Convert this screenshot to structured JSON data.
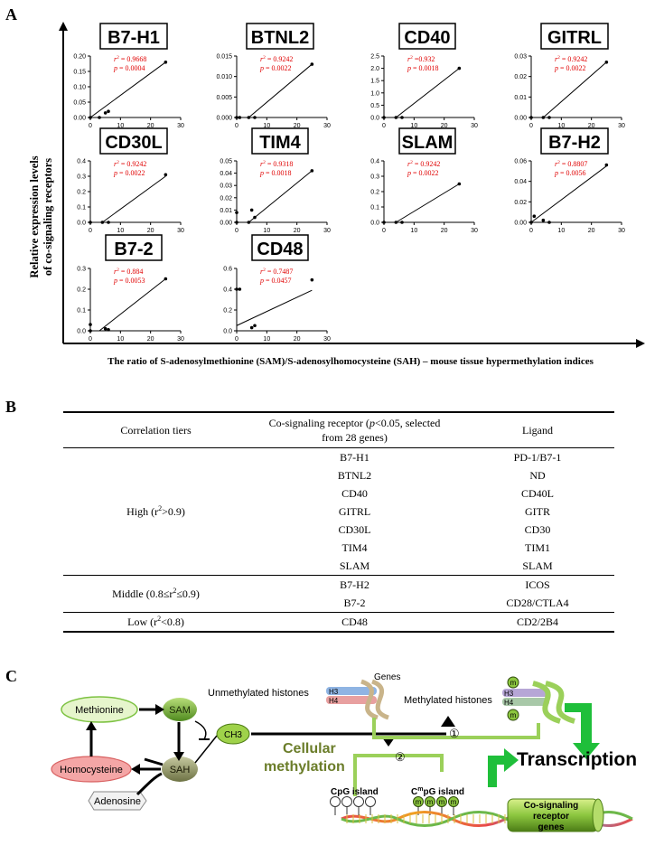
{
  "panels": {
    "a": "A",
    "b": "B",
    "c": "C"
  },
  "panel_a": {
    "y_axis_label_line1": "Relative expression levels",
    "y_axis_label_line2": "of co-signaling receptors",
    "x_axis_label": "The ratio of S-adenosylmethionine (SAM)/S-adenosylhomocysteine (SAH) – mouse tissue hypermethylation indices"
  },
  "chart_data": [
    {
      "type": "scatter",
      "title": "B7-H1",
      "r2": "0.9668",
      "p": "0.0004",
      "x_ticks": [
        0,
        10,
        20,
        30
      ],
      "y_ticks": [
        "0.00",
        "0.05",
        "0.10",
        "0.15",
        "0.20"
      ],
      "xlim": [
        0,
        30
      ],
      "ylim": [
        0,
        0.2
      ],
      "points": [
        [
          0,
          0
        ],
        [
          3,
          0
        ],
        [
          5,
          0.015
        ],
        [
          6,
          0.02
        ],
        [
          25,
          0.18
        ]
      ],
      "fit": [
        [
          0,
          0
        ],
        [
          25,
          0.18
        ]
      ]
    },
    {
      "type": "scatter",
      "title": "BTNL2",
      "r2": "0.9242",
      "p": "0.0022",
      "x_ticks": [
        0,
        10,
        20,
        30
      ],
      "y_ticks": [
        "0.000",
        "0.005",
        "0.010",
        "0.015"
      ],
      "xlim": [
        0,
        30
      ],
      "ylim": [
        0,
        0.015
      ],
      "points": [
        [
          0,
          0
        ],
        [
          1,
          0
        ],
        [
          4,
          0
        ],
        [
          6,
          0
        ],
        [
          25,
          0.013
        ]
      ],
      "fit": [
        [
          4,
          0
        ],
        [
          25,
          0.013
        ]
      ]
    },
    {
      "type": "scatter",
      "title": "CD40",
      "r2": "=0.932",
      "p": "0.0018",
      "x_ticks": [
        0,
        10,
        20,
        30
      ],
      "y_ticks": [
        "0.0",
        "0.5",
        "1.0",
        "1.5",
        "2.0",
        "2.5"
      ],
      "xlim": [
        0,
        30
      ],
      "ylim": [
        0,
        2.5
      ],
      "points": [
        [
          0,
          0
        ],
        [
          4,
          0
        ],
        [
          6,
          0
        ],
        [
          25,
          2.0
        ]
      ],
      "fit": [
        [
          4,
          0
        ],
        [
          25,
          2.0
        ]
      ]
    },
    {
      "type": "scatter",
      "title": "GITRL",
      "r2": "0.9242",
      "p": "0.0022",
      "x_ticks": [
        0,
        10,
        20,
        30
      ],
      "y_ticks": [
        "0.00",
        "0.01",
        "0.02",
        "0.03"
      ],
      "xlim": [
        0,
        30
      ],
      "ylim": [
        0,
        0.03
      ],
      "points": [
        [
          0,
          0
        ],
        [
          4,
          0
        ],
        [
          6,
          0
        ],
        [
          25,
          0.027
        ]
      ],
      "fit": [
        [
          4,
          0
        ],
        [
          25,
          0.027
        ]
      ]
    },
    {
      "type": "scatter",
      "title": "CD30L",
      "r2": "0.9242",
      "p": "0.0022",
      "x_ticks": [
        0,
        10,
        20,
        30
      ],
      "y_ticks": [
        "0.0",
        "0.1",
        "0.2",
        "0.3",
        "0.4"
      ],
      "xlim": [
        0,
        30
      ],
      "ylim": [
        0,
        0.4
      ],
      "points": [
        [
          0,
          0
        ],
        [
          4,
          0
        ],
        [
          6,
          0
        ],
        [
          25,
          0.31
        ]
      ],
      "fit": [
        [
          4,
          0
        ],
        [
          25,
          0.3
        ]
      ]
    },
    {
      "type": "scatter",
      "title": "TIM4",
      "r2": "0.9318",
      "p": "0.0018",
      "x_ticks": [
        0,
        10,
        20,
        30
      ],
      "y_ticks": [
        "0.00",
        "0.01",
        "0.02",
        "0.03",
        "0.04",
        "0.05"
      ],
      "xlim": [
        0,
        30
      ],
      "ylim": [
        0,
        0.05
      ],
      "points": [
        [
          0,
          0.008
        ],
        [
          0,
          0
        ],
        [
          4,
          0
        ],
        [
          5,
          0.01
        ],
        [
          6,
          0.004
        ],
        [
          25,
          0.042
        ]
      ],
      "fit": [
        [
          4,
          0
        ],
        [
          25,
          0.042
        ]
      ]
    },
    {
      "type": "scatter",
      "title": "SLAM",
      "r2": "0.9242",
      "p": "0.0022",
      "x_ticks": [
        0,
        10,
        20,
        30
      ],
      "y_ticks": [
        "0.0",
        "0.1",
        "0.2",
        "0.3",
        "0.4"
      ],
      "xlim": [
        0,
        30
      ],
      "ylim": [
        0,
        0.4
      ],
      "points": [
        [
          0,
          0
        ],
        [
          4,
          0
        ],
        [
          6,
          0
        ],
        [
          25,
          0.25
        ]
      ],
      "fit": [
        [
          4,
          0
        ],
        [
          25,
          0.25
        ]
      ]
    },
    {
      "type": "scatter",
      "title": "B7-H2",
      "r2": "0.8807",
      "p": "0.0056",
      "x_ticks": [
        0,
        10,
        20,
        30
      ],
      "y_ticks": [
        "0.00",
        "0.02",
        "0.04",
        "0.06"
      ],
      "xlim": [
        0,
        30
      ],
      "ylim": [
        0,
        0.06
      ],
      "points": [
        [
          0,
          0
        ],
        [
          1,
          0.006
        ],
        [
          4,
          0.002
        ],
        [
          6,
          0
        ],
        [
          25,
          0.056
        ]
      ],
      "fit": [
        [
          0,
          0
        ],
        [
          25,
          0.055
        ]
      ]
    },
    {
      "type": "scatter",
      "title": "B7-2",
      "r2": "0.884",
      "p": "0.0053",
      "x_ticks": [
        0,
        10,
        20,
        30
      ],
      "y_ticks": [
        "0.0",
        "0.1",
        "0.2",
        "0.3"
      ],
      "xlim": [
        0,
        30
      ],
      "ylim": [
        0,
        0.3
      ],
      "points": [
        [
          0,
          0.03
        ],
        [
          0,
          0
        ],
        [
          5,
          0.01
        ],
        [
          6,
          0.005
        ],
        [
          25,
          0.25
        ]
      ],
      "fit": [
        [
          3,
          0
        ],
        [
          25,
          0.25
        ]
      ]
    },
    {
      "type": "scatter",
      "title": "CD48",
      "r2": "0.7487",
      "p": "0.0457",
      "x_ticks": [
        0,
        10,
        20,
        30
      ],
      "y_ticks": [
        "0.0",
        "0.2",
        "0.4",
        "0.6"
      ],
      "xlim": [
        0,
        30
      ],
      "ylim": [
        0,
        0.6
      ],
      "points": [
        [
          0,
          0.4
        ],
        [
          1,
          0.4
        ],
        [
          5,
          0.03
        ],
        [
          6,
          0.05
        ],
        [
          25,
          0.49
        ]
      ],
      "fit": [
        [
          0,
          0.05
        ],
        [
          25,
          0.39
        ]
      ]
    }
  ],
  "table": {
    "headers": {
      "tiers": "Correlation tiers",
      "receptor_part1": "Co-signaling receptor (",
      "receptor_p": "p",
      "receptor_part2": "<0.05, selected",
      "receptor_line2": "from 28 genes)",
      "ligand": "Ligand"
    },
    "tiers": {
      "high_pre": "High (r",
      "high_sup": "2",
      "high_post": ">0.9)",
      "middle_pre": "Middle (0.8≤r",
      "middle_sup": "2",
      "middle_post": "≤0.9)",
      "low_pre": "Low (r",
      "low_sup": "2",
      "low_post": "<0.8)"
    },
    "rows": [
      {
        "receptor": "B7-H1",
        "ligand": "PD-1/B7-1"
      },
      {
        "receptor": "BTNL2",
        "ligand": "ND"
      },
      {
        "receptor": "CD40",
        "ligand": "CD40L"
      },
      {
        "receptor": "GITRL",
        "ligand": "GITR"
      },
      {
        "receptor": "CD30L",
        "ligand": "CD30"
      },
      {
        "receptor": "TIM4",
        "ligand": "TIM1"
      },
      {
        "receptor": "SLAM",
        "ligand": "SLAM"
      },
      {
        "receptor": "B7-H2",
        "ligand": "ICOS"
      },
      {
        "receptor": "B7-2",
        "ligand": "CD28/CTLA4"
      },
      {
        "receptor": "CD48",
        "ligand": "CD2/2B4"
      }
    ]
  },
  "diagram": {
    "methionine": "Methionine",
    "sam": "SAM",
    "sah": "SAH",
    "homocysteine": "Homocysteine",
    "adenosine": "Adenosine",
    "ch3": "CH3",
    "cellular_line1": "Cellular",
    "cellular_line2": "methylation",
    "unmethylated_histones": "Unmethylated histones",
    "genes": "Genes",
    "methylated_histones": "Methylated histones",
    "h3": "H3",
    "h4": "H4",
    "m": "m",
    "step1": "①",
    "step2": "②",
    "cpg_island": "CpG island",
    "cmpg_pre": "C",
    "cmpg_sup": "m",
    "cmpg_post": "pG island",
    "transcription": "Transcription",
    "receptor_genes_line1": "Co-signaling",
    "receptor_genes_line2": "receptor",
    "receptor_genes_line3": "genes",
    "colors": {
      "green": "#7dc242",
      "dark_green": "#5b7a1f",
      "olive_text": "#6b7d2a",
      "pink": "#f4a6a6",
      "light_green": "#e6f5cc",
      "red_text": "#e00000"
    }
  }
}
